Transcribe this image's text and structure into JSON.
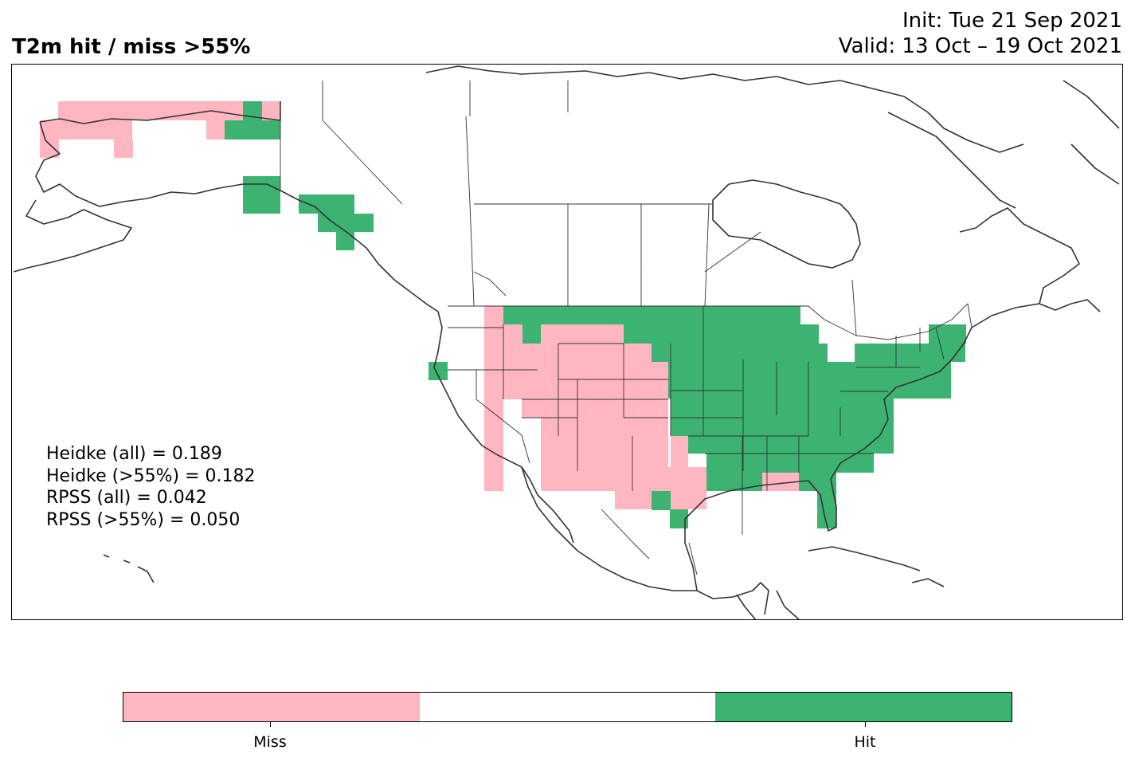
{
  "header": {
    "title": "T2m hit / miss  >55%",
    "init_line": "Init: Tue 21 Sep 2021",
    "valid_line": "Valid: 13 Oct – 19 Oct 2021"
  },
  "colors": {
    "miss": "#ffb6c1",
    "hit": "#3cb371",
    "neutral": "#ffffff",
    "coastline": "#333333"
  },
  "stats": {
    "heidke_all": "Heidke (all) = 0.189",
    "heidke_55": "Heidke (>55%) = 0.182",
    "rpss_all": "RPSS (all) = 0.042",
    "rpss_55": "RPSS (>55%) = 0.050"
  },
  "legend": {
    "miss_label": "Miss",
    "hit_label": "Hit"
  }
}
